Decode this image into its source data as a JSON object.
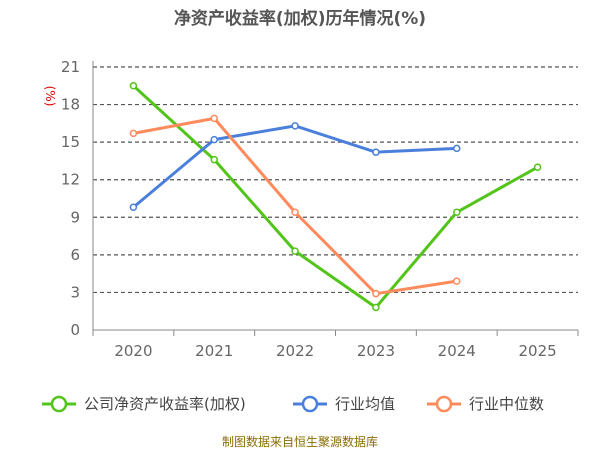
{
  "chart_data": {
    "type": "line",
    "title": "净资产收益率(加权)历年情况(%)",
    "unit_label": "(%)",
    "categories": [
      "2020",
      "2021",
      "2022",
      "2023",
      "2024",
      "2025"
    ],
    "yticks": [
      "0",
      "3",
      "6",
      "9",
      "12",
      "15",
      "18",
      "21"
    ],
    "ylim": [
      0,
      21
    ],
    "grid": true,
    "legend_position": "bottom",
    "series": [
      {
        "name": "公司净资产收益率(加权)",
        "color": "#52c41a",
        "values": [
          19.5,
          13.6,
          6.3,
          1.8,
          9.4,
          13.0
        ]
      },
      {
        "name": "行业均值",
        "color": "#4a7fdb",
        "values": [
          9.8,
          15.2,
          16.3,
          14.2,
          14.5,
          null
        ]
      },
      {
        "name": "行业中位数",
        "color": "#ff8a5c",
        "values": [
          15.7,
          16.9,
          9.4,
          2.9,
          3.9,
          null
        ]
      }
    ],
    "source": "制图数据来自恒生聚源数据库"
  }
}
